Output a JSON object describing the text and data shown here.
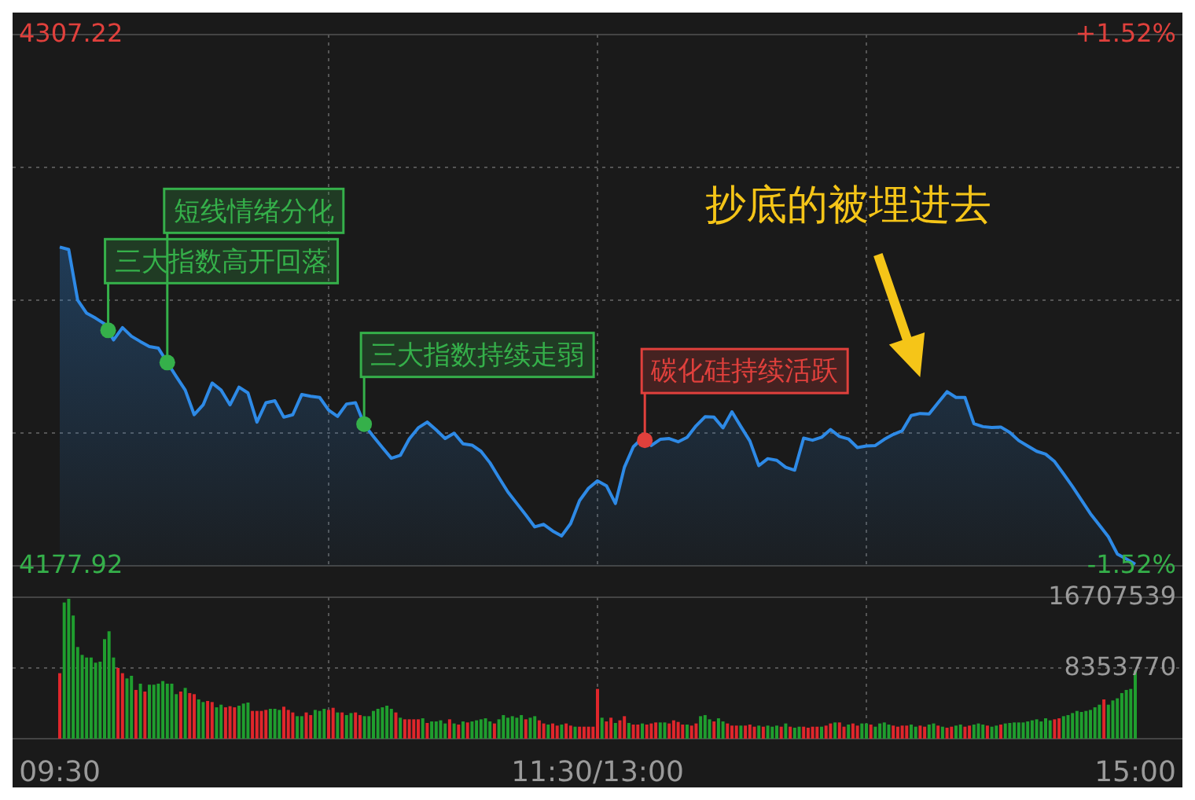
{
  "chart_data": [
    {
      "type": "area",
      "color": "#2e8ae6",
      "categories": [
        null,
        null,
        null,
        null,
        null,
        null,
        null,
        null,
        null,
        null,
        null,
        null,
        null,
        null,
        null,
        null,
        null,
        null,
        null,
        null,
        null,
        null,
        null,
        null,
        null,
        null,
        null,
        null,
        null,
        null,
        null,
        null,
        null,
        null,
        null,
        null,
        null,
        null,
        null,
        null,
        null,
        null,
        null,
        null,
        null,
        null,
        null,
        null,
        null,
        null,
        null,
        null,
        null,
        null,
        null,
        null,
        null,
        null,
        null,
        null,
        null,
        null,
        null,
        null,
        null,
        null,
        null,
        null,
        null,
        null,
        null,
        null,
        null,
        null,
        null,
        null,
        null,
        null,
        null,
        null,
        null,
        null,
        null,
        null,
        null,
        null,
        null,
        null,
        null,
        null,
        null,
        null,
        null,
        null,
        null,
        null,
        null,
        null,
        null,
        null,
        null,
        null,
        null,
        null,
        null,
        null,
        null,
        null,
        null,
        null,
        null,
        null,
        null,
        null,
        null,
        null,
        null,
        null,
        null,
        null,
        null
      ],
      "values": [
        4255.5,
        4254.9,
        4242.6,
        4239.4,
        4238.2,
        4236.8,
        4232.9,
        4235.9,
        4233.8,
        4232.5,
        4231.3,
        4230.9,
        4227.4,
        4224.0,
        4220.7,
        4214.7,
        4217.1,
        4222.4,
        4220.7,
        4217.1,
        4221.4,
        4220.0,
        4212.9,
        4217.6,
        4218.1,
        4214.1,
        4214.7,
        4219.6,
        4219.2,
        4218.9,
        4215.8,
        4214.3,
        4217.3,
        4217.6,
        4212.2,
        4209.4,
        4206.7,
        4204.1,
        4204.8,
        4208.8,
        4211.5,
        4212.9,
        4211.0,
        4208.9,
        4210.2,
        4207.6,
        4207.3,
        4205.8,
        4203.0,
        4199.4,
        4195.9,
        4193.1,
        4190.3,
        4187.4,
        4188.0,
        4186.4,
        4185.2,
        4188.2,
        4193.8,
        4196.8,
        4198.6,
        4197.4,
        4193.1,
        4201.9,
        4206.9,
        4209.0,
        4207.2,
        4208.7,
        4208.9,
        4208.1,
        4209.2,
        4212.0,
        4214.2,
        4214.1,
        4211.5,
        4215.4,
        4211.8,
        4208.3,
        4202.3,
        4204.0,
        4203.6,
        4201.9,
        4201.2,
        4209.0,
        4208.5,
        4209.2,
        4211.1,
        4209.4,
        4208.8,
        4206.7,
        4207.1,
        4207.2,
        4208.7,
        4209.9,
        4210.8,
        4214.5,
        4215.0,
        4214.9,
        4217.6,
        4220.3,
        4218.9,
        4218.9,
        4212.5,
        4211.8,
        4211.6,
        4211.7,
        4210.4,
        4208.4,
        4207.1,
        4205.8,
        4205.1,
        4203.3,
        4200.3,
        4197.2,
        4193.9,
        4190.6,
        4187.8,
        4185.0,
        4180.8,
        4179.6,
        4178.3
      ],
      "ylim": [
        4177.92,
        4307.22
      ],
      "yticks": [
        4177.92,
        {
          "value": 4210.245,
          "label": null
        },
        {
          "value": 4242.57,
          "label": null
        },
        {
          "value": 4274.895,
          "label": null
        },
        4307.22
      ],
      "y2lim": [
        -1.52,
        1.52
      ],
      "y2ticks": [
        {
          "value": -1.52,
          "label": "-1.52%"
        },
        {
          "value": 1.52,
          "label": "+1.52%"
        }
      ],
      "tick_labels": "y",
      "grid": true,
      "annotations": [
        "三大指数高开回落",
        "短线情绪分化",
        "三大指数持续走弱",
        "碳化硅持续活跃",
        "抄底的被埋进去"
      ]
    },
    {
      "type": "bar",
      "categories": [
        "09:30",
        null,
        null,
        null,
        null,
        null,
        null,
        null,
        null,
        null,
        null,
        null,
        null,
        null,
        null,
        null,
        null,
        null,
        null,
        null,
        null,
        null,
        null,
        null,
        null,
        null,
        null,
        null,
        null,
        null,
        null,
        null,
        null,
        null,
        null,
        null,
        null,
        null,
        null,
        null,
        null,
        null,
        null,
        null,
        null,
        null,
        null,
        null,
        null,
        null,
        null,
        null,
        null,
        null,
        null,
        null,
        null,
        null,
        null,
        null,
        null,
        null,
        null,
        null,
        null,
        null,
        null,
        null,
        null,
        null,
        null,
        null,
        null,
        null,
        null,
        null,
        null,
        null,
        null,
        null,
        null,
        null,
        null,
        null,
        null,
        null,
        null,
        null,
        null,
        null,
        null,
        null,
        null,
        null,
        null,
        null,
        null,
        null,
        null,
        null,
        null,
        null,
        null,
        null,
        null,
        null,
        null,
        null,
        null,
        null,
        null,
        null,
        null,
        null,
        null,
        null,
        null,
        null,
        null,
        null,
        "11:30/13:00",
        null,
        null,
        null,
        null,
        null,
        null,
        null,
        null,
        null,
        null,
        null,
        null,
        null,
        null,
        null,
        null,
        null,
        null,
        null,
        null,
        null,
        null,
        null,
        null,
        null,
        null,
        null,
        null,
        null,
        null,
        null,
        null,
        null,
        null,
        null,
        null,
        null,
        null,
        null,
        null,
        null,
        null,
        null,
        null,
        null,
        null,
        null,
        null,
        null,
        null,
        null,
        null,
        null,
        null,
        null,
        null,
        null,
        null,
        null,
        null,
        null,
        null,
        null,
        null,
        null,
        null,
        null,
        null,
        null,
        null,
        null,
        null,
        null,
        null,
        null,
        null,
        null,
        null,
        null,
        null,
        null,
        null,
        null,
        null,
        null,
        null,
        null,
        null,
        null,
        null,
        null,
        null,
        null,
        null,
        null,
        null,
        null,
        null,
        null,
        null,
        null,
        null,
        null,
        null,
        null,
        null,
        null,
        null,
        null,
        null,
        null,
        null,
        null,
        null,
        null,
        null,
        null,
        null,
        null,
        "15:00"
      ],
      "values": [
        7740000,
        16090000,
        16530000,
        14550000,
        10830000,
        9900000,
        9590000,
        9590000,
        8980000,
        9100000,
        11760000,
        12690000,
        9590000,
        8360000,
        7740000,
        7120000,
        7430000,
        5760000,
        6500000,
        5570000,
        6380000,
        6380000,
        6500000,
        6810000,
        6500000,
        6500000,
        5260000,
        5570000,
        6000000,
        5390000,
        5260000,
        4640000,
        4330000,
        4460000,
        4330000,
        3710000,
        4020000,
        3710000,
        3840000,
        3710000,
        3900000,
        4150000,
        4270000,
        3280000,
        3280000,
        3280000,
        3400000,
        3530000,
        3530000,
        3400000,
        3780000,
        3400000,
        3100000,
        2660000,
        2660000,
        3100000,
        2790000,
        3400000,
        3280000,
        3530000,
        3400000,
        3650000,
        3100000,
        3100000,
        2790000,
        3030000,
        3100000,
        2790000,
        2660000,
        2660000,
        3280000,
        3530000,
        3710000,
        3900000,
        3530000,
        3100000,
        2480000,
        2290000,
        2290000,
        2290000,
        2290000,
        2410000,
        1860000,
        2040000,
        2040000,
        2170000,
        1800000,
        2290000,
        1800000,
        1670000,
        2040000,
        1920000,
        2040000,
        2170000,
        2290000,
        2410000,
        2040000,
        1800000,
        2290000,
        2790000,
        2480000,
        2660000,
        2480000,
        2790000,
        2290000,
        2480000,
        2660000,
        2170000,
        1800000,
        1670000,
        1800000,
        1550000,
        1670000,
        1800000,
        1550000,
        1420000,
        1420000,
        1420000,
        1420000,
        1420000,
        5880000,
        2480000,
        2040000,
        2480000,
        1860000,
        2170000,
        2660000,
        1860000,
        1670000,
        1670000,
        1800000,
        1670000,
        1800000,
        1920000,
        1920000,
        1920000,
        1800000,
        2170000,
        1980000,
        1670000,
        1670000,
        1550000,
        1800000,
        2660000,
        2790000,
        2290000,
        2040000,
        2410000,
        2040000,
        1800000,
        1550000,
        1550000,
        1550000,
        1550000,
        1670000,
        1420000,
        1550000,
        1420000,
        1550000,
        1420000,
        1550000,
        1420000,
        1800000,
        1420000,
        1300000,
        1420000,
        1420000,
        1300000,
        1420000,
        1420000,
        1420000,
        1550000,
        1800000,
        1920000,
        1920000,
        1420000,
        1670000,
        1800000,
        1550000,
        1800000,
        1800000,
        1670000,
        1420000,
        1800000,
        1920000,
        1670000,
        1550000,
        1420000,
        1550000,
        1550000,
        1670000,
        1420000,
        1550000,
        1420000,
        1670000,
        1800000,
        1550000,
        1420000,
        1300000,
        1420000,
        1550000,
        1670000,
        1420000,
        1550000,
        1670000,
        1800000,
        1670000,
        1550000,
        1420000,
        1550000,
        1670000,
        1800000,
        1860000,
        1920000,
        1920000,
        1920000,
        2040000,
        2170000,
        2290000,
        2040000,
        2410000,
        2170000,
        2290000,
        2410000,
        2660000,
        2790000,
        3030000,
        3280000,
        3160000,
        3280000,
        3400000,
        3710000,
        4020000,
        4640000,
        4020000,
        4520000,
        4770000,
        5390000,
        5760000,
        5880000,
        8050000
      ],
      "colors": [
        "#e0262b",
        "#1f9e2e",
        "#1f9e2e",
        "#1f9e2e",
        "#1f9e2e",
        "#1f9e2e",
        "#1f9e2e",
        "#1f9e2e",
        "#1f9e2e",
        "#1f9e2e",
        "#1f9e2e",
        "#1f9e2e",
        "#1f9e2e",
        "#e0262b",
        "#e0262b",
        "#1f9e2e",
        "#1f9e2e",
        "#e0262b",
        "#1f9e2e",
        "#e0262b",
        "#1f9e2e",
        "#1f9e2e",
        "#1f9e2e",
        "#1f9e2e",
        "#1f9e2e",
        "#1f9e2e",
        "#1f9e2e",
        "#e0262b",
        "#1f9e2e",
        "#e0262b",
        "#e0262b",
        "#1f9e2e",
        "#1f9e2e",
        "#e0262b",
        "#e0262b",
        "#1f9e2e",
        "#1f9e2e",
        "#e0262b",
        "#e0262b",
        "#e0262b",
        "#1f9e2e",
        "#1f9e2e",
        "#1f9e2e",
        "#e0262b",
        "#e0262b",
        "#e0262b",
        "#e0262b",
        "#1f9e2e",
        "#1f9e2e",
        "#1f9e2e",
        "#e0262b",
        "#e0262b",
        "#e0262b",
        "#1f9e2e",
        "#1f9e2e",
        "#e0262b",
        "#e0262b",
        "#1f9e2e",
        "#1f9e2e",
        "#1f9e2e",
        "#e0262b",
        "#e0262b",
        "#1f9e2e",
        "#e0262b",
        "#1f9e2e",
        "#1f9e2e",
        "#e0262b",
        "#e0262b",
        "#1f9e2e",
        "#1f9e2e",
        "#1f9e2e",
        "#1f9e2e",
        "#1f9e2e",
        "#1f9e2e",
        "#1f9e2e",
        "#e0262b",
        "#1f9e2e",
        "#e0262b",
        "#e0262b",
        "#e0262b",
        "#e0262b",
        "#1f9e2e",
        "#e0262b",
        "#1f9e2e",
        "#1f9e2e",
        "#1f9e2e",
        "#1f9e2e",
        "#e0262b",
        "#1f9e2e",
        "#e0262b",
        "#1f9e2e",
        "#e0262b",
        "#1f9e2e",
        "#1f9e2e",
        "#1f9e2e",
        "#1f9e2e",
        "#1f9e2e",
        "#e0262b",
        "#1f9e2e",
        "#1f9e2e",
        "#1f9e2e",
        "#1f9e2e",
        "#1f9e2e",
        "#1f9e2e",
        "#e0262b",
        "#1f9e2e",
        "#1f9e2e",
        "#e0262b",
        "#e0262b",
        "#1f9e2e",
        "#e0262b",
        "#e0262b",
        "#1f9e2e",
        "#e0262b",
        "#e0262b",
        "#1f9e2e",
        "#e0262b",
        "#e0262b",
        "#e0262b",
        "#e0262b",
        "#e0262b",
        "#1f9e2e",
        "#e0262b",
        "#e0262b",
        "#1f9e2e",
        "#e0262b",
        "#e0262b",
        "#1f9e2e",
        "#e0262b",
        "#e0262b",
        "#1f9e2e",
        "#e0262b",
        "#e0262b",
        "#e0262b",
        "#1f9e2e",
        "#1f9e2e",
        "#e0262b",
        "#e0262b",
        "#e0262b",
        "#e0262b",
        "#1f9e2e",
        "#e0262b",
        "#e0262b",
        "#1f9e2e",
        "#1f9e2e",
        "#1f9e2e",
        "#e0262b",
        "#1f9e2e",
        "#1f9e2e",
        "#e0262b",
        "#e0262b",
        "#e0262b",
        "#1f9e2e",
        "#e0262b",
        "#e0262b",
        "#e0262b",
        "#1f9e2e",
        "#e0262b",
        "#1f9e2e",
        "#1f9e2e",
        "#1f9e2e",
        "#e0262b",
        "#1f9e2e",
        "#e0262b",
        "#1f9e2e",
        "#1f9e2e",
        "#e0262b",
        "#e0262b",
        "#e0262b",
        "#e0262b",
        "#1f9e2e",
        "#e0262b",
        "#e0262b",
        "#1f9e2e",
        "#e0262b",
        "#e0262b",
        "#1f9e2e",
        "#e0262b",
        "#e0262b",
        "#1f9e2e",
        "#1f9e2e",
        "#e0262b",
        "#1f9e2e",
        "#1f9e2e",
        "#1f9e2e",
        "#1f9e2e",
        "#e0262b",
        "#e0262b",
        "#e0262b",
        "#e0262b",
        "#1f9e2e",
        "#1f9e2e",
        "#e0262b",
        "#e0262b",
        "#1f9e2e",
        "#1f9e2e",
        "#e0262b",
        "#1f9e2e",
        "#e0262b",
        "#e0262b",
        "#1f9e2e",
        "#1f9e2e",
        "#e0262b",
        "#e0262b",
        "#1f9e2e",
        "#1f9e2e",
        "#1f9e2e",
        "#e0262b",
        "#1f9e2e",
        "#1f9e2e",
        "#e0262b",
        "#1f9e2e",
        "#1f9e2e",
        "#1f9e2e",
        "#1f9e2e",
        "#1f9e2e",
        "#1f9e2e",
        "#1f9e2e",
        "#1f9e2e",
        "#1f9e2e",
        "#1f9e2e",
        "#1f9e2e",
        "#e0262b",
        "#e0262b",
        "#1f9e2e",
        "#1f9e2e",
        "#1f9e2e",
        "#1f9e2e",
        "#1f9e2e",
        "#1f9e2e",
        "#1f9e2e",
        "#1f9e2e",
        "#1f9e2e",
        "#e0262b",
        "#1f9e2e",
        "#1f9e2e",
        "#1f9e2e",
        "#1f9e2e",
        "#1f9e2e",
        "#1f9e2e",
        "#1f9e2e"
      ],
      "ylim": [
        0,
        16707539
      ],
      "yticks": [
        8353770,
        16707539
      ],
      "grid": true
    }
  ]
}
